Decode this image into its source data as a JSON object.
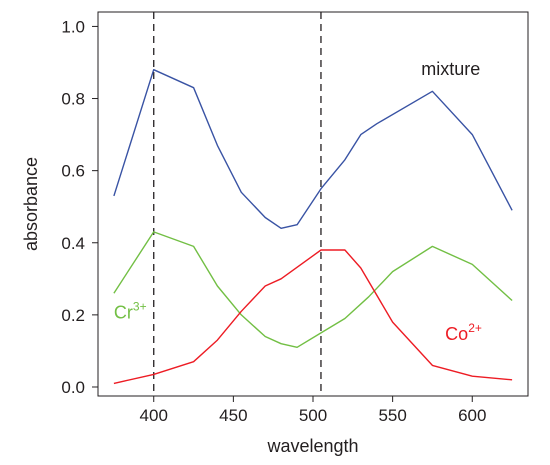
{
  "chart_data": {
    "type": "line",
    "xlabel": "wavelength",
    "ylabel": "absorbance",
    "xlim": [
      365,
      635
    ],
    "ylim": [
      -0.025,
      1.04
    ],
    "x_ticks": [
      400,
      450,
      500,
      550,
      600
    ],
    "x_tick_labels": [
      "400",
      "450",
      "500",
      "550",
      "600"
    ],
    "y_ticks": [
      0.0,
      0.2,
      0.4,
      0.6,
      0.8,
      1.0
    ],
    "y_tick_labels": [
      "0.0",
      "0.2",
      "0.4",
      "0.6",
      "0.8",
      "1.0"
    ],
    "grid": false,
    "reference_lines_x": [
      400,
      505
    ],
    "series": [
      {
        "name": "mixture",
        "color": "#3953a4",
        "points": [
          [
            375,
            0.53
          ],
          [
            400,
            0.88
          ],
          [
            425,
            0.83
          ],
          [
            440,
            0.67
          ],
          [
            455,
            0.54
          ],
          [
            470,
            0.47
          ],
          [
            480,
            0.44
          ],
          [
            490,
            0.45
          ],
          [
            505,
            0.55
          ],
          [
            520,
            0.63
          ],
          [
            530,
            0.7
          ],
          [
            540,
            0.73
          ],
          [
            575,
            0.82
          ],
          [
            600,
            0.7
          ],
          [
            625,
            0.49
          ]
        ],
        "label": {
          "text": "mixture",
          "sup": "",
          "x": 568,
          "y": 0.865
        }
      },
      {
        "name": "Cr3+",
        "color": "#72bf44",
        "points": [
          [
            375,
            0.26
          ],
          [
            400,
            0.43
          ],
          [
            425,
            0.39
          ],
          [
            440,
            0.28
          ],
          [
            455,
            0.2
          ],
          [
            470,
            0.14
          ],
          [
            480,
            0.12
          ],
          [
            490,
            0.11
          ],
          [
            505,
            0.15
          ],
          [
            520,
            0.19
          ],
          [
            535,
            0.25
          ],
          [
            550,
            0.32
          ],
          [
            575,
            0.39
          ],
          [
            600,
            0.34
          ],
          [
            625,
            0.24
          ]
        ],
        "label": {
          "text": "Cr",
          "sup": "3+",
          "x": 375,
          "y": 0.19
        }
      },
      {
        "name": "Co2+",
        "color": "#ed1c24",
        "points": [
          [
            375,
            0.01
          ],
          [
            400,
            0.035
          ],
          [
            425,
            0.07
          ],
          [
            440,
            0.13
          ],
          [
            455,
            0.21
          ],
          [
            470,
            0.28
          ],
          [
            480,
            0.3
          ],
          [
            505,
            0.38
          ],
          [
            520,
            0.38
          ],
          [
            530,
            0.33
          ],
          [
            550,
            0.18
          ],
          [
            575,
            0.06
          ],
          [
            600,
            0.03
          ],
          [
            625,
            0.02
          ]
        ],
        "label": {
          "text": "Co",
          "sup": "2+",
          "x": 583,
          "y": 0.13
        }
      }
    ]
  }
}
